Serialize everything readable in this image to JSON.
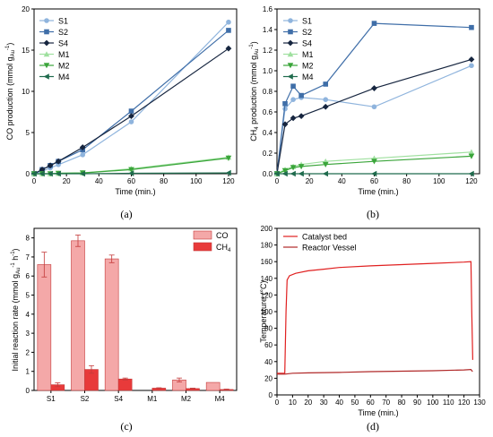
{
  "chart_data": [
    {
      "id": "a",
      "type": "line",
      "caption": "(a)",
      "xlabel": "Time (min.)",
      "ylabel": "CO production (mmol g",
      "ylabel_sub": "Au",
      "ylabel_sup": "-1",
      "ylabel_tail": ")",
      "xlim": [
        0,
        125
      ],
      "ylim": [
        0,
        20
      ],
      "xticks": [
        0,
        20,
        40,
        60,
        80,
        100,
        120
      ],
      "yticks": [
        0,
        5,
        10,
        15,
        20
      ],
      "legend": "top-left",
      "series": [
        {
          "name": "S1",
          "color": "#8fb4dd",
          "marker": "circle",
          "x": [
            0,
            5,
            10,
            15,
            30,
            60,
            120
          ],
          "y": [
            0,
            0.3,
            0.7,
            1.1,
            2.3,
            6.3,
            18.4
          ]
        },
        {
          "name": "S2",
          "color": "#3f6ea8",
          "marker": "square",
          "x": [
            0,
            5,
            10,
            15,
            30,
            60,
            120
          ],
          "y": [
            0,
            0.5,
            1.0,
            1.5,
            2.9,
            7.6,
            17.4
          ]
        },
        {
          "name": "S4",
          "color": "#16253f",
          "marker": "diamond",
          "x": [
            0,
            5,
            10,
            15,
            30,
            60,
            120
          ],
          "y": [
            0,
            0.5,
            1.0,
            1.5,
            3.2,
            7.0,
            15.2
          ]
        },
        {
          "name": "M1",
          "color": "#9fe09f",
          "marker": "triangle-up",
          "x": [
            0,
            5,
            10,
            15,
            30,
            60,
            120
          ],
          "y": [
            0,
            0,
            0,
            0.05,
            0.1,
            0.6,
            2.0
          ]
        },
        {
          "name": "M2",
          "color": "#3aa53a",
          "marker": "triangle-down",
          "x": [
            0,
            5,
            10,
            15,
            30,
            60,
            120
          ],
          "y": [
            0,
            0,
            0,
            0.05,
            0.1,
            0.5,
            1.9
          ]
        },
        {
          "name": "M4",
          "color": "#1f6b4d",
          "marker": "triangle-left",
          "x": [
            0,
            5,
            10,
            15,
            30,
            60,
            120
          ],
          "y": [
            0,
            0,
            0,
            0,
            0,
            0.05,
            0.1
          ]
        }
      ]
    },
    {
      "id": "b",
      "type": "line",
      "caption": "(b)",
      "xlabel": "Time (min.)",
      "ylabel": "CH",
      "ylabel_sub4": "4",
      "ylabel_mid": " production (mmol g",
      "ylabel_sub": "Au",
      "ylabel_sup": "-1",
      "ylabel_tail": ")",
      "xlim": [
        0,
        125
      ],
      "ylim": [
        0,
        1.6
      ],
      "xticks": [
        0,
        20,
        40,
        60,
        80,
        100,
        120
      ],
      "yticks": [
        0.0,
        0.2,
        0.4,
        0.6,
        0.8,
        1.0,
        1.2,
        1.4,
        1.6
      ],
      "ytick_labels": [
        "0.0",
        "0.2",
        "0.4",
        "0.6",
        "0.8",
        "1.0",
        "1.2",
        "1.4",
        "1.6"
      ],
      "legend": "top-left",
      "series": [
        {
          "name": "S1",
          "color": "#8fb4dd",
          "marker": "circle",
          "x": [
            0,
            5,
            10,
            15,
            30,
            60,
            120
          ],
          "y": [
            0,
            0.63,
            0.72,
            0.74,
            0.72,
            0.65,
            1.05
          ]
        },
        {
          "name": "S2",
          "color": "#3f6ea8",
          "marker": "square",
          "x": [
            0,
            5,
            10,
            15,
            30,
            60,
            120
          ],
          "y": [
            0,
            0.68,
            0.85,
            0.76,
            0.87,
            1.46,
            1.42
          ]
        },
        {
          "name": "S4",
          "color": "#16253f",
          "marker": "diamond",
          "x": [
            0,
            5,
            10,
            15,
            30,
            60,
            120
          ],
          "y": [
            0,
            0.48,
            0.54,
            0.56,
            0.65,
            0.83,
            1.11
          ]
        },
        {
          "name": "M1",
          "color": "#9fe09f",
          "marker": "triangle-up",
          "x": [
            0,
            5,
            10,
            15,
            30,
            60,
            120
          ],
          "y": [
            0,
            0.04,
            0.07,
            0.09,
            0.12,
            0.15,
            0.21
          ]
        },
        {
          "name": "M2",
          "color": "#3aa53a",
          "marker": "triangle-down",
          "x": [
            0,
            5,
            10,
            15,
            30,
            60,
            120
          ],
          "y": [
            0,
            0.03,
            0.06,
            0.07,
            0.09,
            0.12,
            0.17
          ]
        },
        {
          "name": "M4",
          "color": "#1f6b4d",
          "marker": "triangle-left",
          "x": [
            0,
            5,
            10,
            15,
            30,
            60,
            120
          ],
          "y": [
            0,
            0,
            0,
            0,
            0,
            0,
            0
          ]
        }
      ]
    },
    {
      "id": "c",
      "type": "bar",
      "caption": "(c)",
      "xlabel": "",
      "ylabel": "Initial reaction rate (mmol g",
      "ylabel_sub": "Au",
      "ylabel_sup": "-1",
      "ylabel_mid": " h",
      "ylabel_sup2": "-1",
      "ylabel_tail": ")",
      "ylim": [
        0,
        8.5
      ],
      "yticks": [
        0,
        1,
        2,
        3,
        4,
        5,
        6,
        7,
        8
      ],
      "categories": [
        "S1",
        "S2",
        "S4",
        "M1",
        "M2",
        "M4"
      ],
      "legend": "top-right",
      "series": [
        {
          "name": "CO",
          "color": "#f4a8a8",
          "values": [
            6.6,
            7.85,
            6.9,
            0.0,
            0.55,
            0.42
          ],
          "errors": [
            0.65,
            0.3,
            0.2,
            0.0,
            0.1,
            0.0
          ]
        },
        {
          "name": "CH",
          "name_sub": "4",
          "color": "#e83a3a",
          "values": [
            0.3,
            1.1,
            0.6,
            0.12,
            0.1,
            0.05
          ],
          "errors": [
            0.1,
            0.2,
            0.05,
            0.02,
            0.02,
            0.02
          ]
        }
      ]
    },
    {
      "id": "d",
      "type": "line",
      "caption": "(d)",
      "xlabel": "Time (min.)",
      "ylabel": "Temperature (°C)",
      "xlim": [
        0,
        130
      ],
      "ylim": [
        0,
        200
      ],
      "xticks": [
        0,
        10,
        20,
        30,
        40,
        50,
        60,
        70,
        80,
        90,
        100,
        110,
        120,
        130
      ],
      "yticks": [
        0,
        20,
        40,
        60,
        80,
        100,
        120,
        140,
        160,
        180,
        200
      ],
      "legend": "top-left",
      "series": [
        {
          "name": "Catalyst bed",
          "color": "#e02020",
          "x": [
            0,
            5,
            5.8,
            6.5,
            8,
            12,
            20,
            30,
            40,
            60,
            80,
            100,
            120,
            124.5,
            125,
            125.6
          ],
          "y": [
            26,
            26,
            100,
            138,
            143,
            146,
            149,
            151,
            153,
            155,
            156.5,
            158,
            159.5,
            160,
            100,
            42
          ]
        },
        {
          "name": "Reactor Vessel",
          "color": "#b02828",
          "x": [
            0,
            5,
            10,
            20,
            40,
            60,
            80,
            100,
            120,
            124.5,
            125.5
          ],
          "y": [
            25,
            25,
            26,
            26.5,
            27,
            28,
            28.5,
            29,
            30,
            30.5,
            28
          ]
        }
      ]
    }
  ]
}
